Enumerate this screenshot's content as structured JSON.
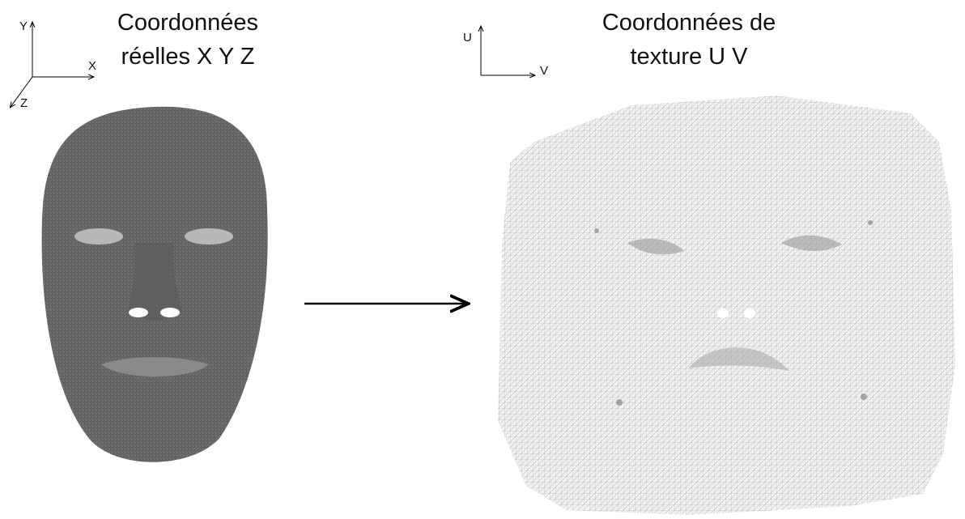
{
  "left": {
    "title": [
      "Coordonnées",
      "réelles X Y Z"
    ],
    "axes": [
      "Y",
      "X",
      "Z"
    ]
  },
  "right": {
    "title": [
      "Coordonnées de",
      "texture U V"
    ],
    "axes": [
      "U",
      "V"
    ]
  }
}
